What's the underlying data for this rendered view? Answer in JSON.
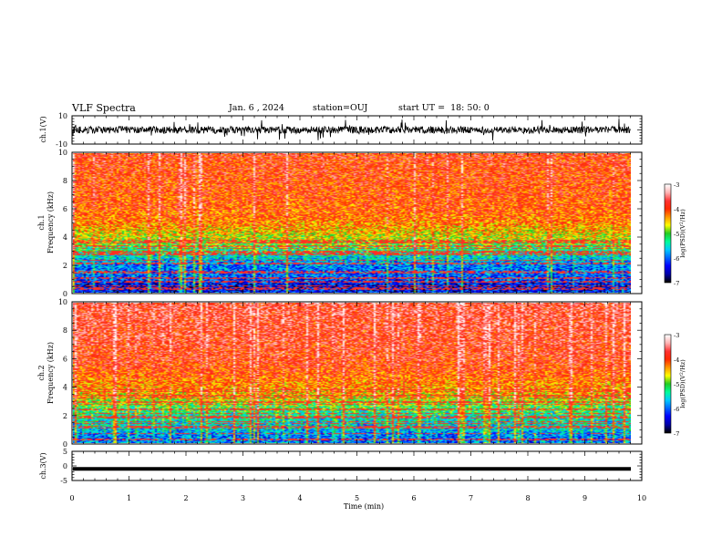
{
  "header": {
    "title": "VLF Spectra",
    "date": "Jan. 6 , 2024",
    "station": "station=OUJ",
    "start_ut": "start UT =  18: 50: 0"
  },
  "chart_data": [
    {
      "type": "line",
      "panel": "ch1-waveform",
      "ylabel": "ch.1(V)",
      "ylim": [
        -10,
        10
      ],
      "y_ticks": [
        "10",
        "-10"
      ],
      "baseline_value": 0,
      "line_color": "#000000"
    },
    {
      "type": "heatmap",
      "panel": "ch1-spectrogram",
      "ylabel": "ch.1\nFrequency (kHz)",
      "ylabel_lines": [
        "ch.1",
        "Frequency  (kHz)"
      ],
      "ylim": [
        0,
        10
      ],
      "y_ticks": [
        "0",
        "2",
        "4",
        "6",
        "8",
        "10"
      ],
      "xlim": [
        0,
        10
      ],
      "data_extent_min": 9.83,
      "colorbar": {
        "label": "log(PSD)(V²/Hz)",
        "label_parts": [
          "log(PSD)(V",
          "2",
          "/Hz)"
        ],
        "range": [
          -7,
          -3
        ],
        "ticks": [
          "-3",
          "-4",
          "-5",
          "-6",
          "-7"
        ]
      },
      "profile_khz_log": [
        [
          0,
          -6.4
        ],
        [
          0.5,
          -6.6
        ],
        [
          1,
          -6.2
        ],
        [
          2,
          -6.0
        ],
        [
          3,
          -5.3
        ],
        [
          4,
          -4.6
        ],
        [
          5,
          -4.1
        ],
        [
          6,
          -3.9
        ],
        [
          8,
          -3.8
        ],
        [
          10,
          -3.7
        ]
      ]
    },
    {
      "type": "heatmap",
      "panel": "ch2-spectrogram",
      "ylabel": "ch.2\nFrequency (kHz)",
      "ylabel_lines": [
        "ch.2",
        "Frequency  (kHz)"
      ],
      "ylim": [
        0,
        10
      ],
      "y_ticks": [
        "0",
        "2",
        "4",
        "6",
        "8",
        "10"
      ],
      "xlim": [
        0,
        10
      ],
      "data_extent_min": 9.83,
      "colorbar": {
        "label": "log(PSD)(V²/Hz)",
        "label_parts": [
          "log(PSD)(V",
          "2",
          "/Hz)"
        ],
        "range": [
          -7,
          -3
        ],
        "ticks": [
          "-3",
          "-4",
          "-5",
          "-6",
          "-7"
        ]
      },
      "profile_khz_log": [
        [
          0,
          -6.0
        ],
        [
          0.5,
          -6.1
        ],
        [
          1,
          -5.7
        ],
        [
          2,
          -5.4
        ],
        [
          3,
          -4.8
        ],
        [
          4,
          -4.2
        ],
        [
          5,
          -3.9
        ],
        [
          6,
          -3.7
        ],
        [
          8,
          -3.6
        ],
        [
          10,
          -3.5
        ]
      ]
    },
    {
      "type": "line",
      "panel": "ch3-waveform",
      "ylabel": "ch.3(V)",
      "ylim": [
        -5,
        5
      ],
      "y_ticks": [
        "5",
        "0",
        "-5"
      ],
      "values_constant": -1,
      "xlabel": "Time  (min)",
      "xlim": [
        0,
        10
      ],
      "x_ticks": [
        "0",
        "1",
        "2",
        "3",
        "4",
        "5",
        "6",
        "7",
        "8",
        "9",
        "10"
      ]
    }
  ],
  "colors": {
    "colormap": [
      "#000000",
      "#0000aa",
      "#0000ff",
      "#0066ff",
      "#00ccff",
      "#00ff99",
      "#22cc22",
      "#ffff00",
      "#ff9900",
      "#ff2a00",
      "#ff3333",
      "#ffb3b3",
      "#ffffff"
    ]
  }
}
